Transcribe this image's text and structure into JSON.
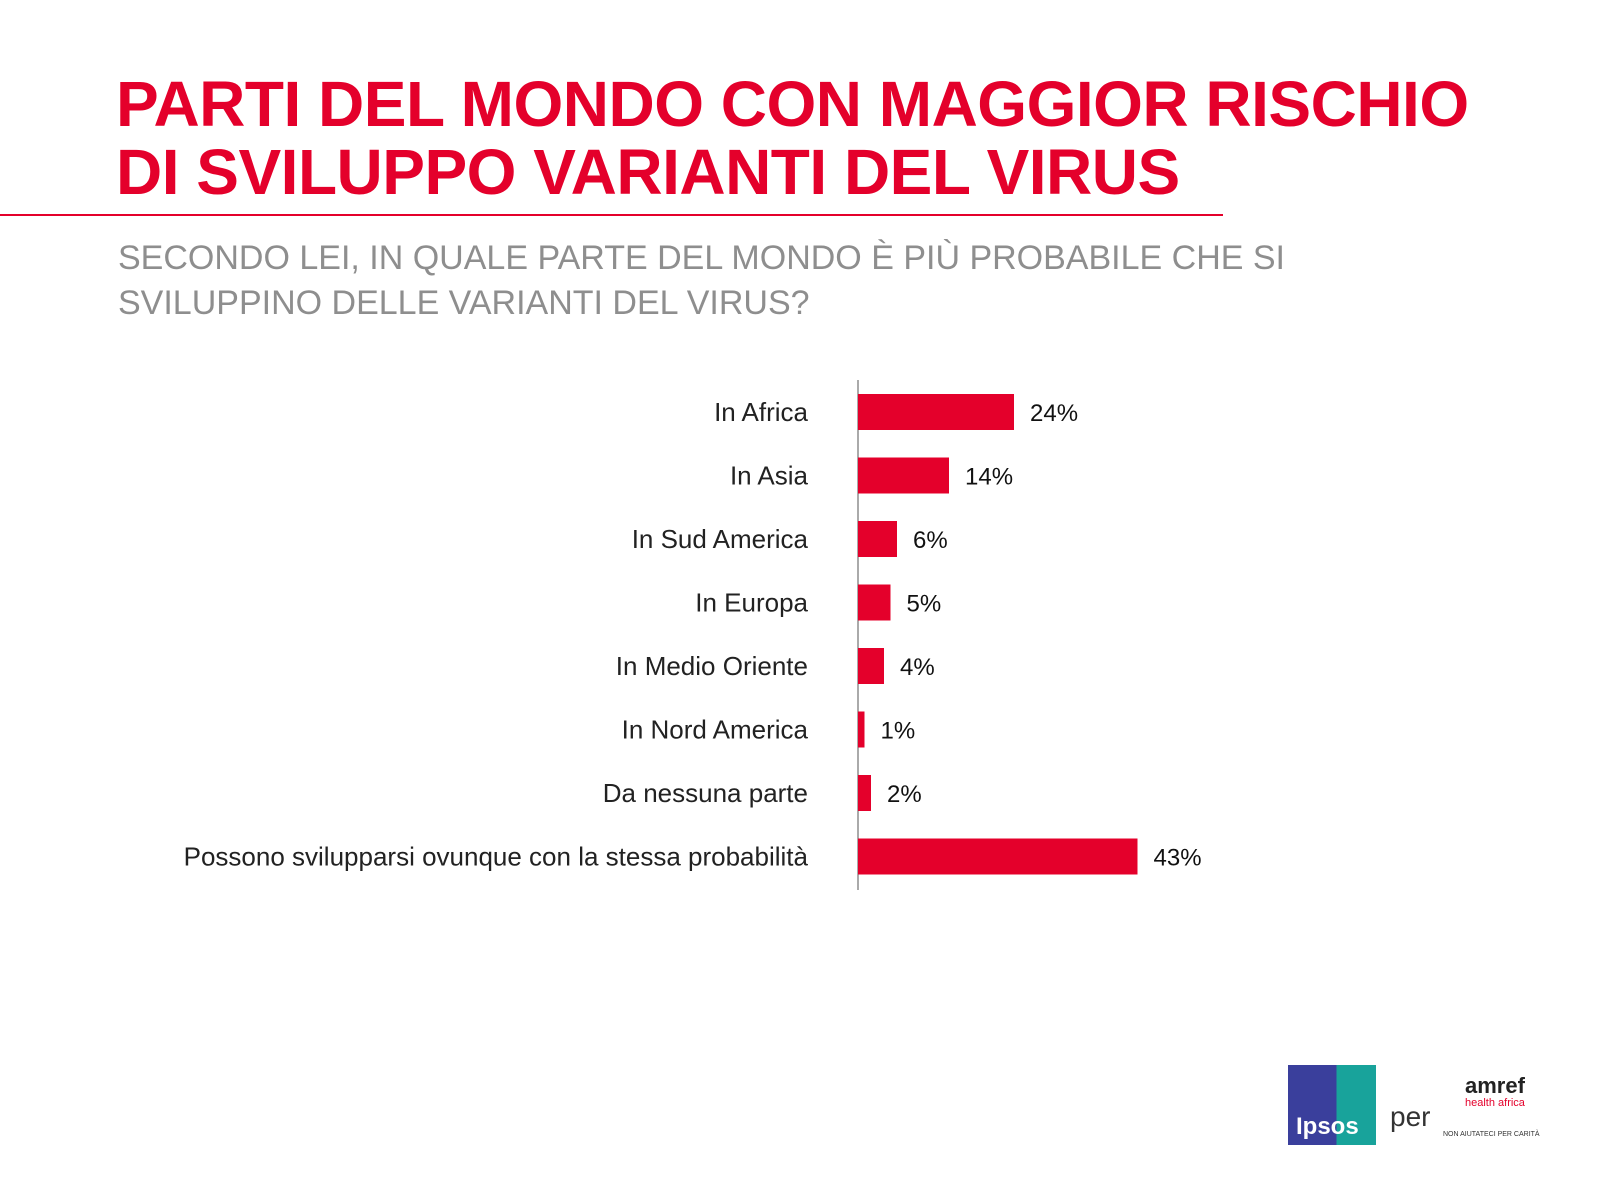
{
  "title_lines": [
    "PARTI DEL MONDO CON MAGGIOR RISCHIO",
    "DI SVILUPPO VARIANTI DEL VIRUS"
  ],
  "subtitle_lines": [
    "SECONDO LEI, IN QUALE PARTE DEL MONDO È PIÙ PROBABILE CHE SI",
    "SVILUPPINO DELLE VARIANTI DEL VIRUS?"
  ],
  "chart_data": {
    "type": "bar",
    "orientation": "horizontal",
    "categories": [
      "In Africa",
      "In Asia",
      "In Sud America",
      "In Europa",
      "In Medio Oriente",
      "In Nord America",
      "Da nessuna parte",
      "Possono svilupparsi ovunque con la stessa probabilità"
    ],
    "values": [
      24,
      14,
      6,
      5,
      4,
      1,
      2,
      43
    ],
    "labels": [
      "24%",
      "14%",
      "6%",
      "5%",
      "4%",
      "1%",
      "2%",
      "43%"
    ],
    "unit": "%",
    "color": "#e4002b",
    "grid": false
  },
  "footer": {
    "brand1": "Ipsos",
    "connector": "per",
    "brand2": "amref",
    "brand2_sub": "health africa",
    "brand2_tagline": "NON AIUTATECI PER CARITÀ"
  }
}
